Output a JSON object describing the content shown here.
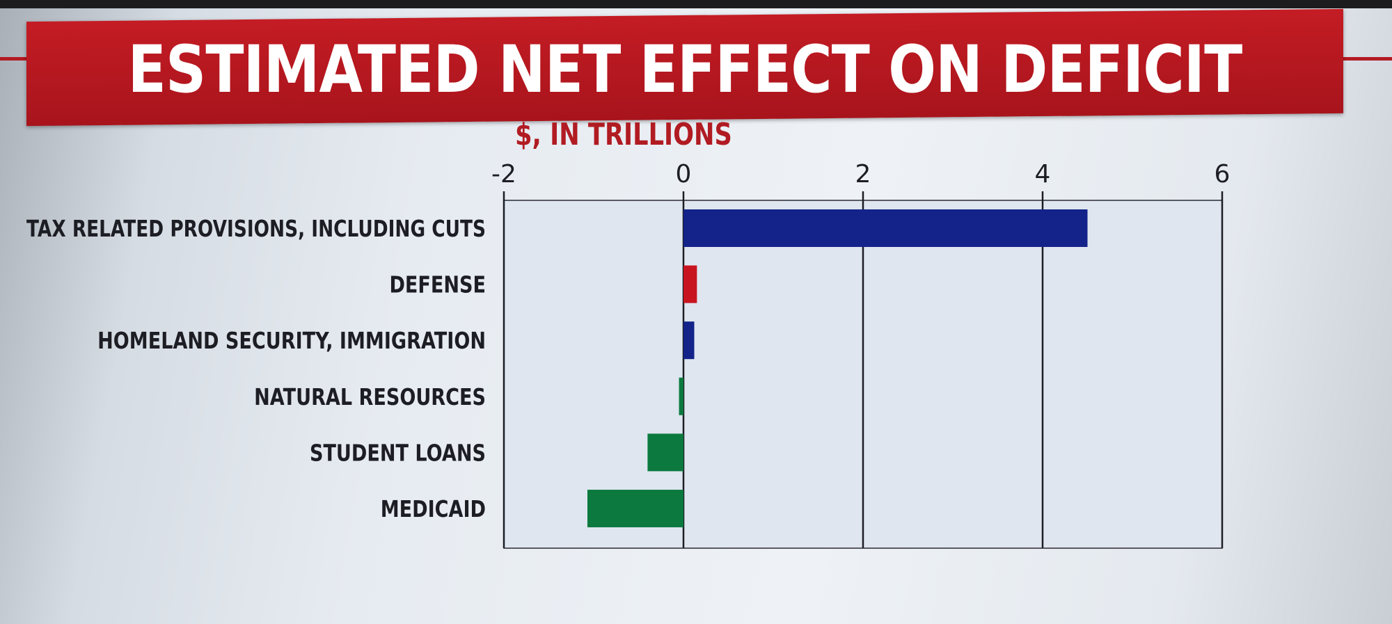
{
  "chart_data": {
    "type": "bar",
    "orientation": "horizontal",
    "title": "ESTIMATED NET EFFECT ON DEFICIT",
    "subtitle": "$, IN TRILLIONS",
    "xlim": [
      -2,
      6
    ],
    "xticks": [
      "-2",
      "0",
      "2",
      "4",
      "6"
    ],
    "categories": [
      "TAX RELATED PROVISIONS, INCLUDING CUTS",
      "DEFENSE",
      "HOMELAND SECURITY, IMMIGRATION",
      "NATURAL RESOURCES",
      "STUDENT LOANS",
      "MEDICAID"
    ],
    "values": [
      4.5,
      0.15,
      0.12,
      -0.05,
      -0.4,
      -1.07
    ],
    "bar_colors": [
      "#13238a",
      "#c8141f",
      "#13238a",
      "#0c7a3e",
      "#0c7a3e",
      "#0c7a3e"
    ],
    "grid": "vertical",
    "legend": "none"
  }
}
